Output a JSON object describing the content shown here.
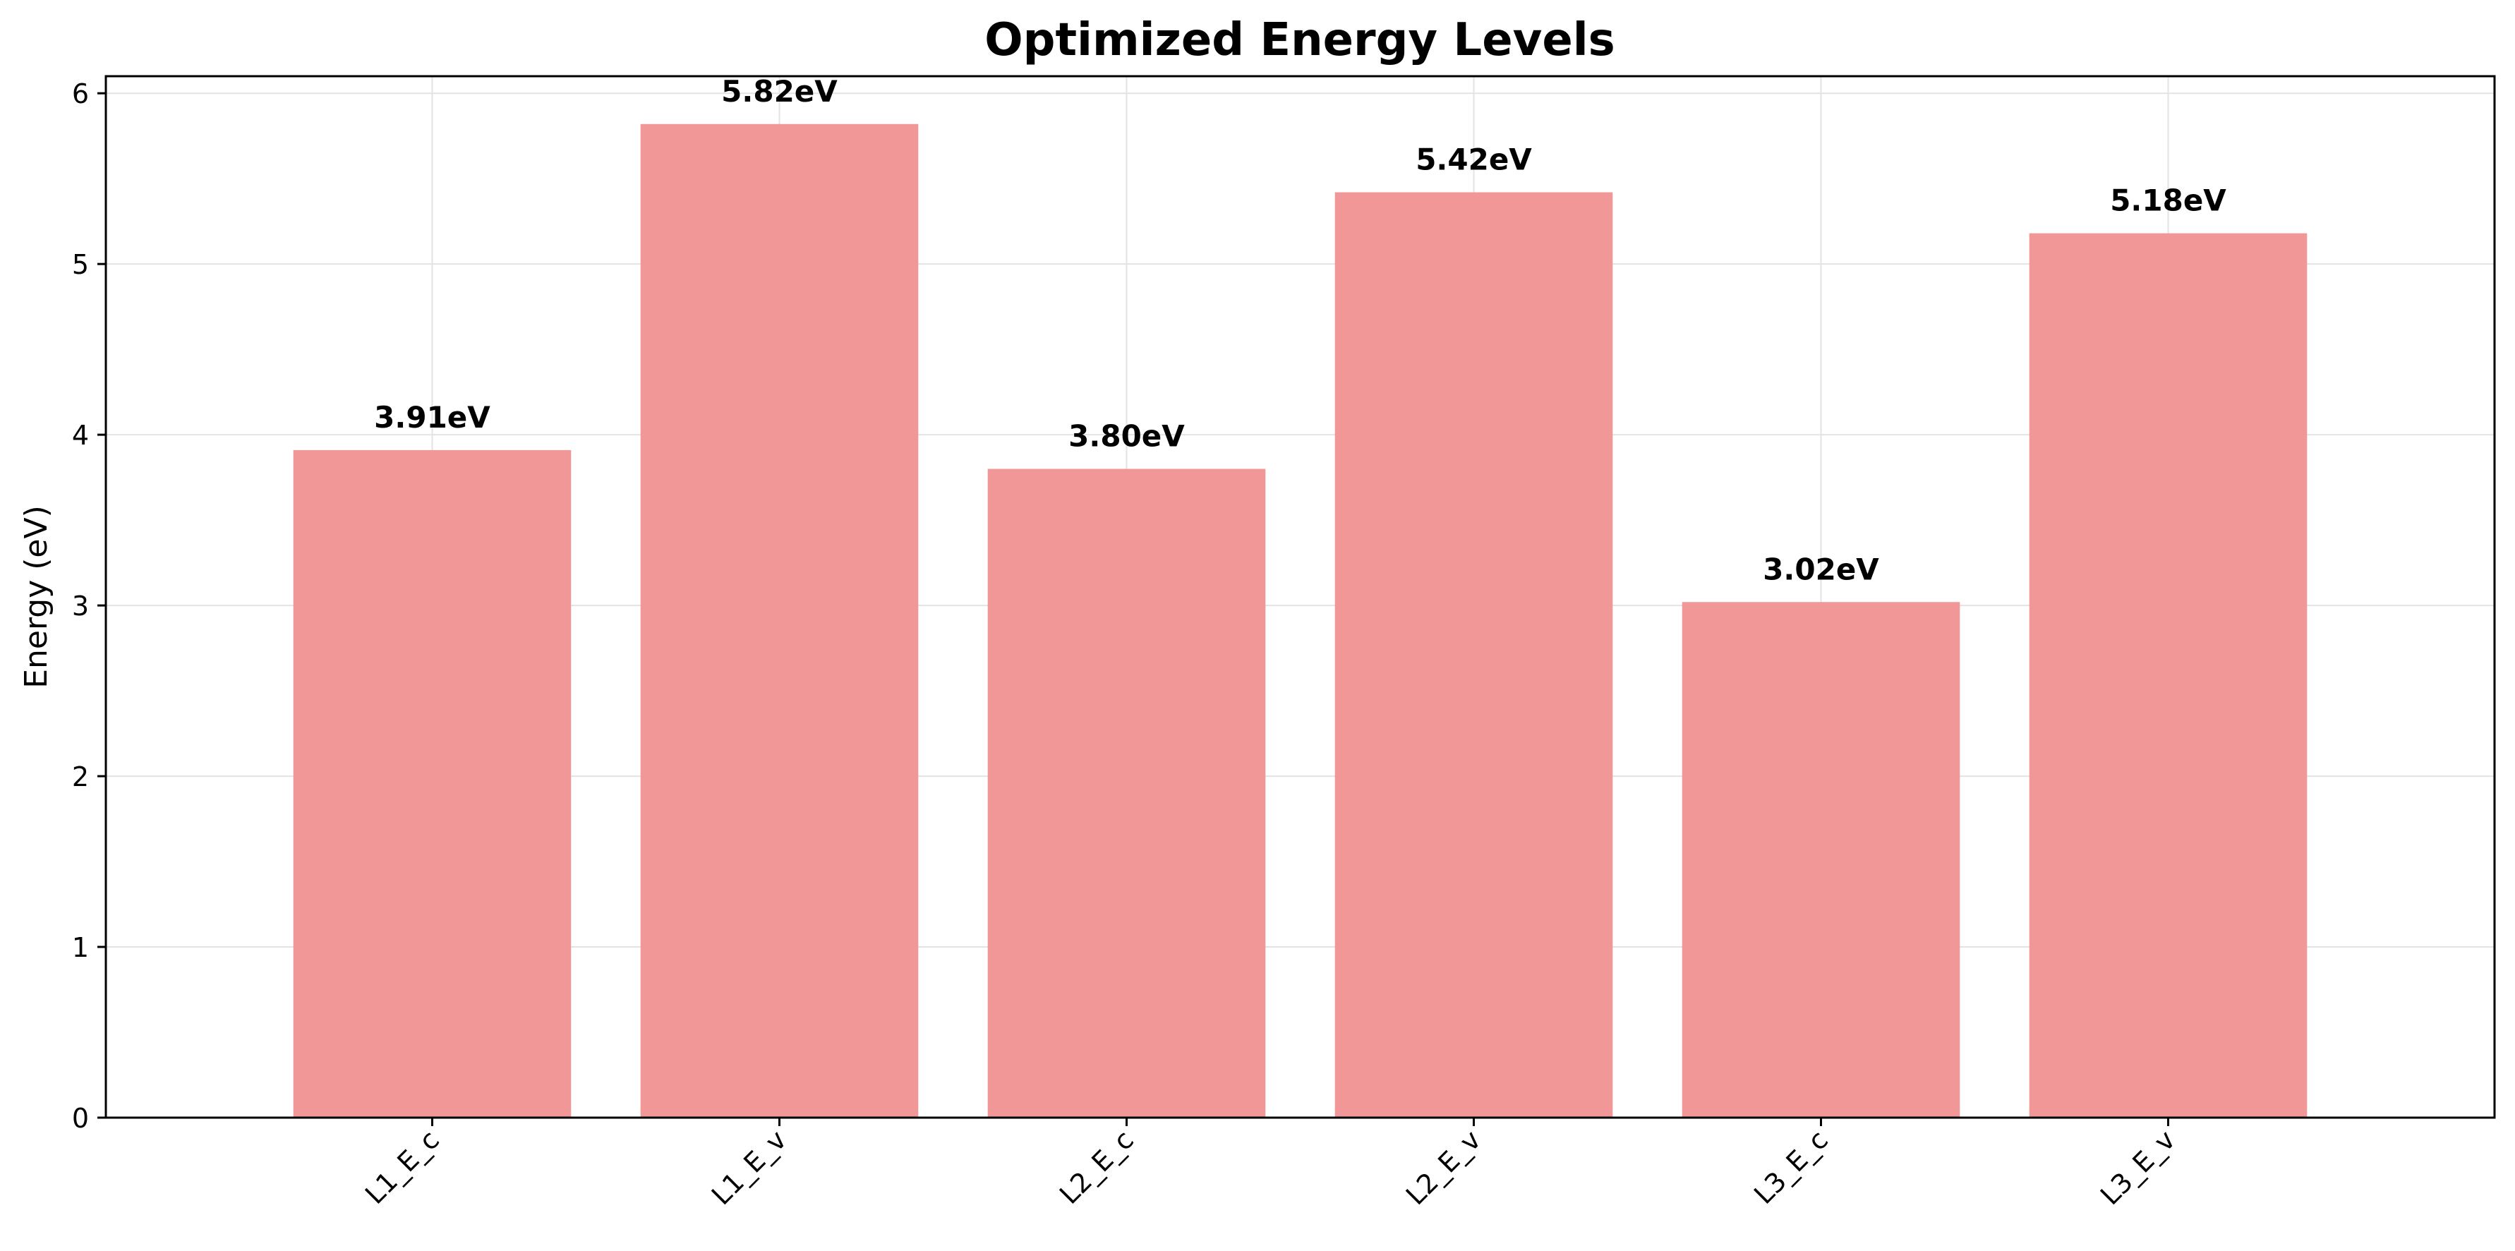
{
  "chart_data": {
    "type": "bar",
    "title": "Optimized Energy Levels",
    "xlabel": "",
    "ylabel": "Energy (eV)",
    "categories": [
      "L1_E_c",
      "L1_E_v",
      "L2_E_c",
      "L2_E_v",
      "L3_E_c",
      "L3_E_v"
    ],
    "values": [
      3.91,
      5.82,
      3.8,
      5.42,
      3.02,
      5.18
    ],
    "data_labels": [
      "3.91eV",
      "5.82eV",
      "3.80eV",
      "5.42eV",
      "3.02eV",
      "5.18eV"
    ],
    "ylim": [
      0,
      6.1
    ],
    "yticks": [
      0,
      1,
      2,
      3,
      4,
      5,
      6
    ],
    "grid": true,
    "legend": "none",
    "x_tick_rotation_deg": 45,
    "colors": {
      "bar": "#f19797",
      "grid": "#e3e3e3",
      "axis": "#000000",
      "text": "#000000"
    }
  }
}
